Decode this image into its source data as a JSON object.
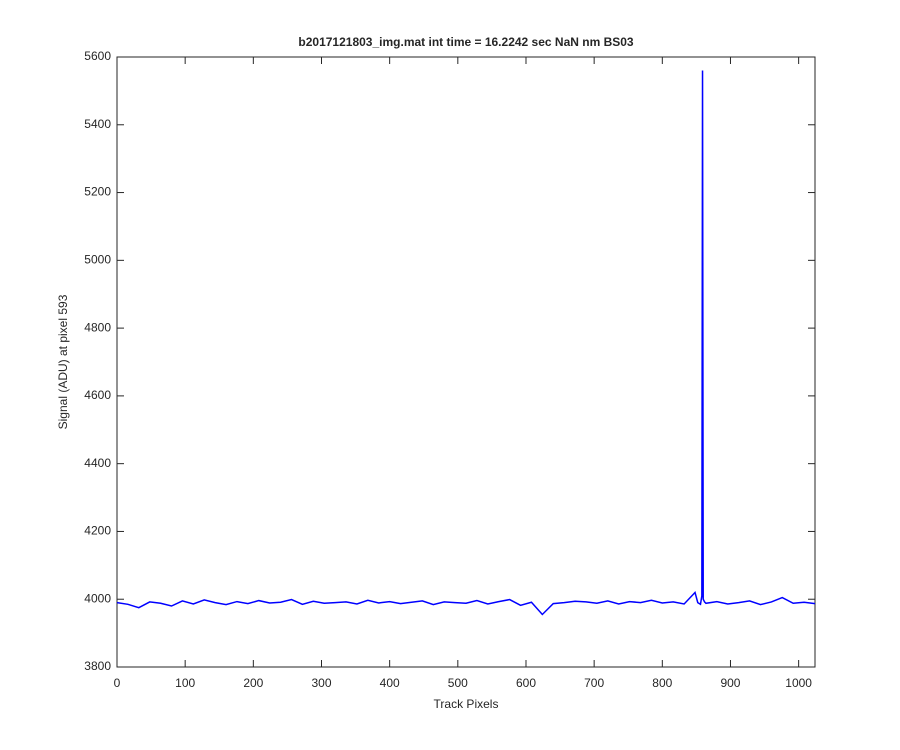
{
  "chart_data": {
    "type": "line",
    "title": "b2017121803_img.mat int time = 16.2242 sec  NaN nm BS03",
    "x_label": "Track Pixels",
    "y_label": "Signal (ADU) at pixel 593",
    "x": [
      0,
      16,
      32,
      48,
      64,
      80,
      96,
      112,
      128,
      144,
      160,
      176,
      192,
      208,
      224,
      240,
      256,
      272,
      288,
      304,
      320,
      336,
      352,
      368,
      384,
      400,
      416,
      432,
      448,
      464,
      480,
      496,
      512,
      528,
      544,
      560,
      576,
      592,
      608,
      624,
      640,
      656,
      672,
      688,
      704,
      720,
      736,
      752,
      768,
      784,
      800,
      816,
      832,
      848,
      852,
      856,
      858,
      859,
      860,
      862,
      864,
      880,
      896,
      912,
      928,
      944,
      960,
      976,
      992,
      1008,
      1024
    ],
    "series": [
      {
        "name": "Signal",
        "color": "#0000ff",
        "values": [
          3990,
          3985,
          3975,
          3992,
          3988,
          3980,
          3995,
          3986,
          3998,
          3990,
          3984,
          3993,
          3987,
          3996,
          3989,
          3991,
          3999,
          3985,
          3994,
          3988,
          3990,
          3992,
          3986,
          3997,
          3989,
          3993,
          3987,
          3991,
          3995,
          3984,
          3992,
          3990,
          3988,
          3996,
          3986,
          3993,
          3999,
          3982,
          3991,
          3955,
          3987,
          3990,
          3994,
          3992,
          3988,
          3995,
          3986,
          3993,
          3990,
          3997,
          3989,
          3992,
          3986,
          4020,
          3990,
          3985,
          4010,
          5560,
          4000,
          3992,
          3988,
          3993,
          3986,
          3990,
          3995,
          3984,
          3992,
          4005,
          3988,
          3991,
          3987
        ]
      }
    ],
    "xlim": [
      0,
      1024
    ],
    "ylim": [
      3800,
      5600
    ],
    "xticks": [
      0,
      100,
      200,
      300,
      400,
      500,
      600,
      700,
      800,
      900,
      1000
    ],
    "yticks": [
      3800,
      4000,
      4200,
      4400,
      4600,
      4800,
      5000,
      5200,
      5400,
      5600
    ],
    "grid": false
  }
}
